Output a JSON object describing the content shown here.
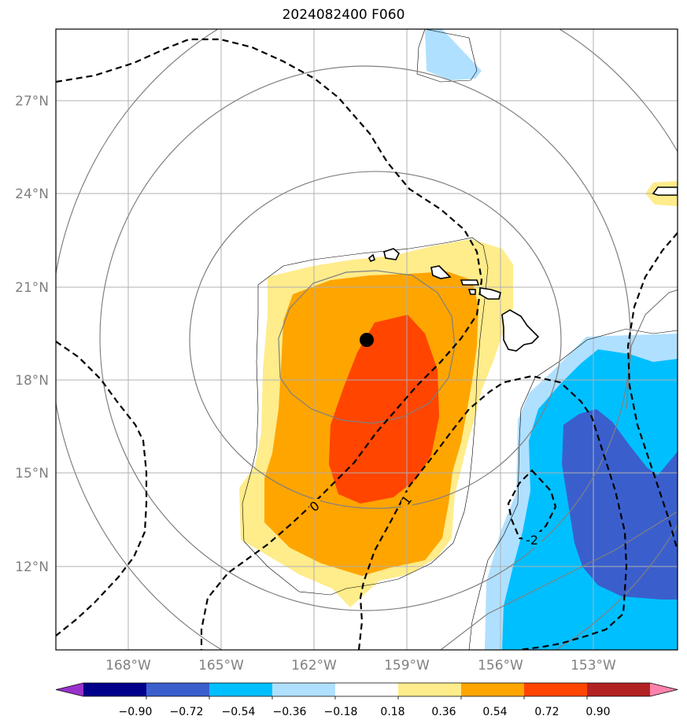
{
  "title": "2024082400 F060",
  "lon_labels": [
    "168°W",
    "165°W",
    "162°W",
    "159°W",
    "156°W",
    "153°W"
  ],
  "lat_labels": [
    "27°N",
    "24°N",
    "21°N",
    "18°N",
    "15°N",
    "12°N"
  ],
  "contour_labels": [
    {
      "text": "0"
    },
    {
      "text": "1"
    },
    {
      "text": "-2"
    }
  ],
  "colorbar": {
    "tick_labels": [
      "−0.90",
      "−0.72",
      "−0.54",
      "−0.36",
      "−0.18",
      "0.18",
      "0.36",
      "0.54",
      "0.72",
      "0.90"
    ],
    "colors": [
      "#9932cc",
      "#00008b",
      "#3a5fcd",
      "#00bfff",
      "#b0e0ff",
      "#ffffff",
      "#ffec8b",
      "#ffa500",
      "#ff4500",
      "#b22222",
      "#ff82ab"
    ]
  },
  "marker": {
    "name": "storm-center",
    "color": "#000000"
  }
}
